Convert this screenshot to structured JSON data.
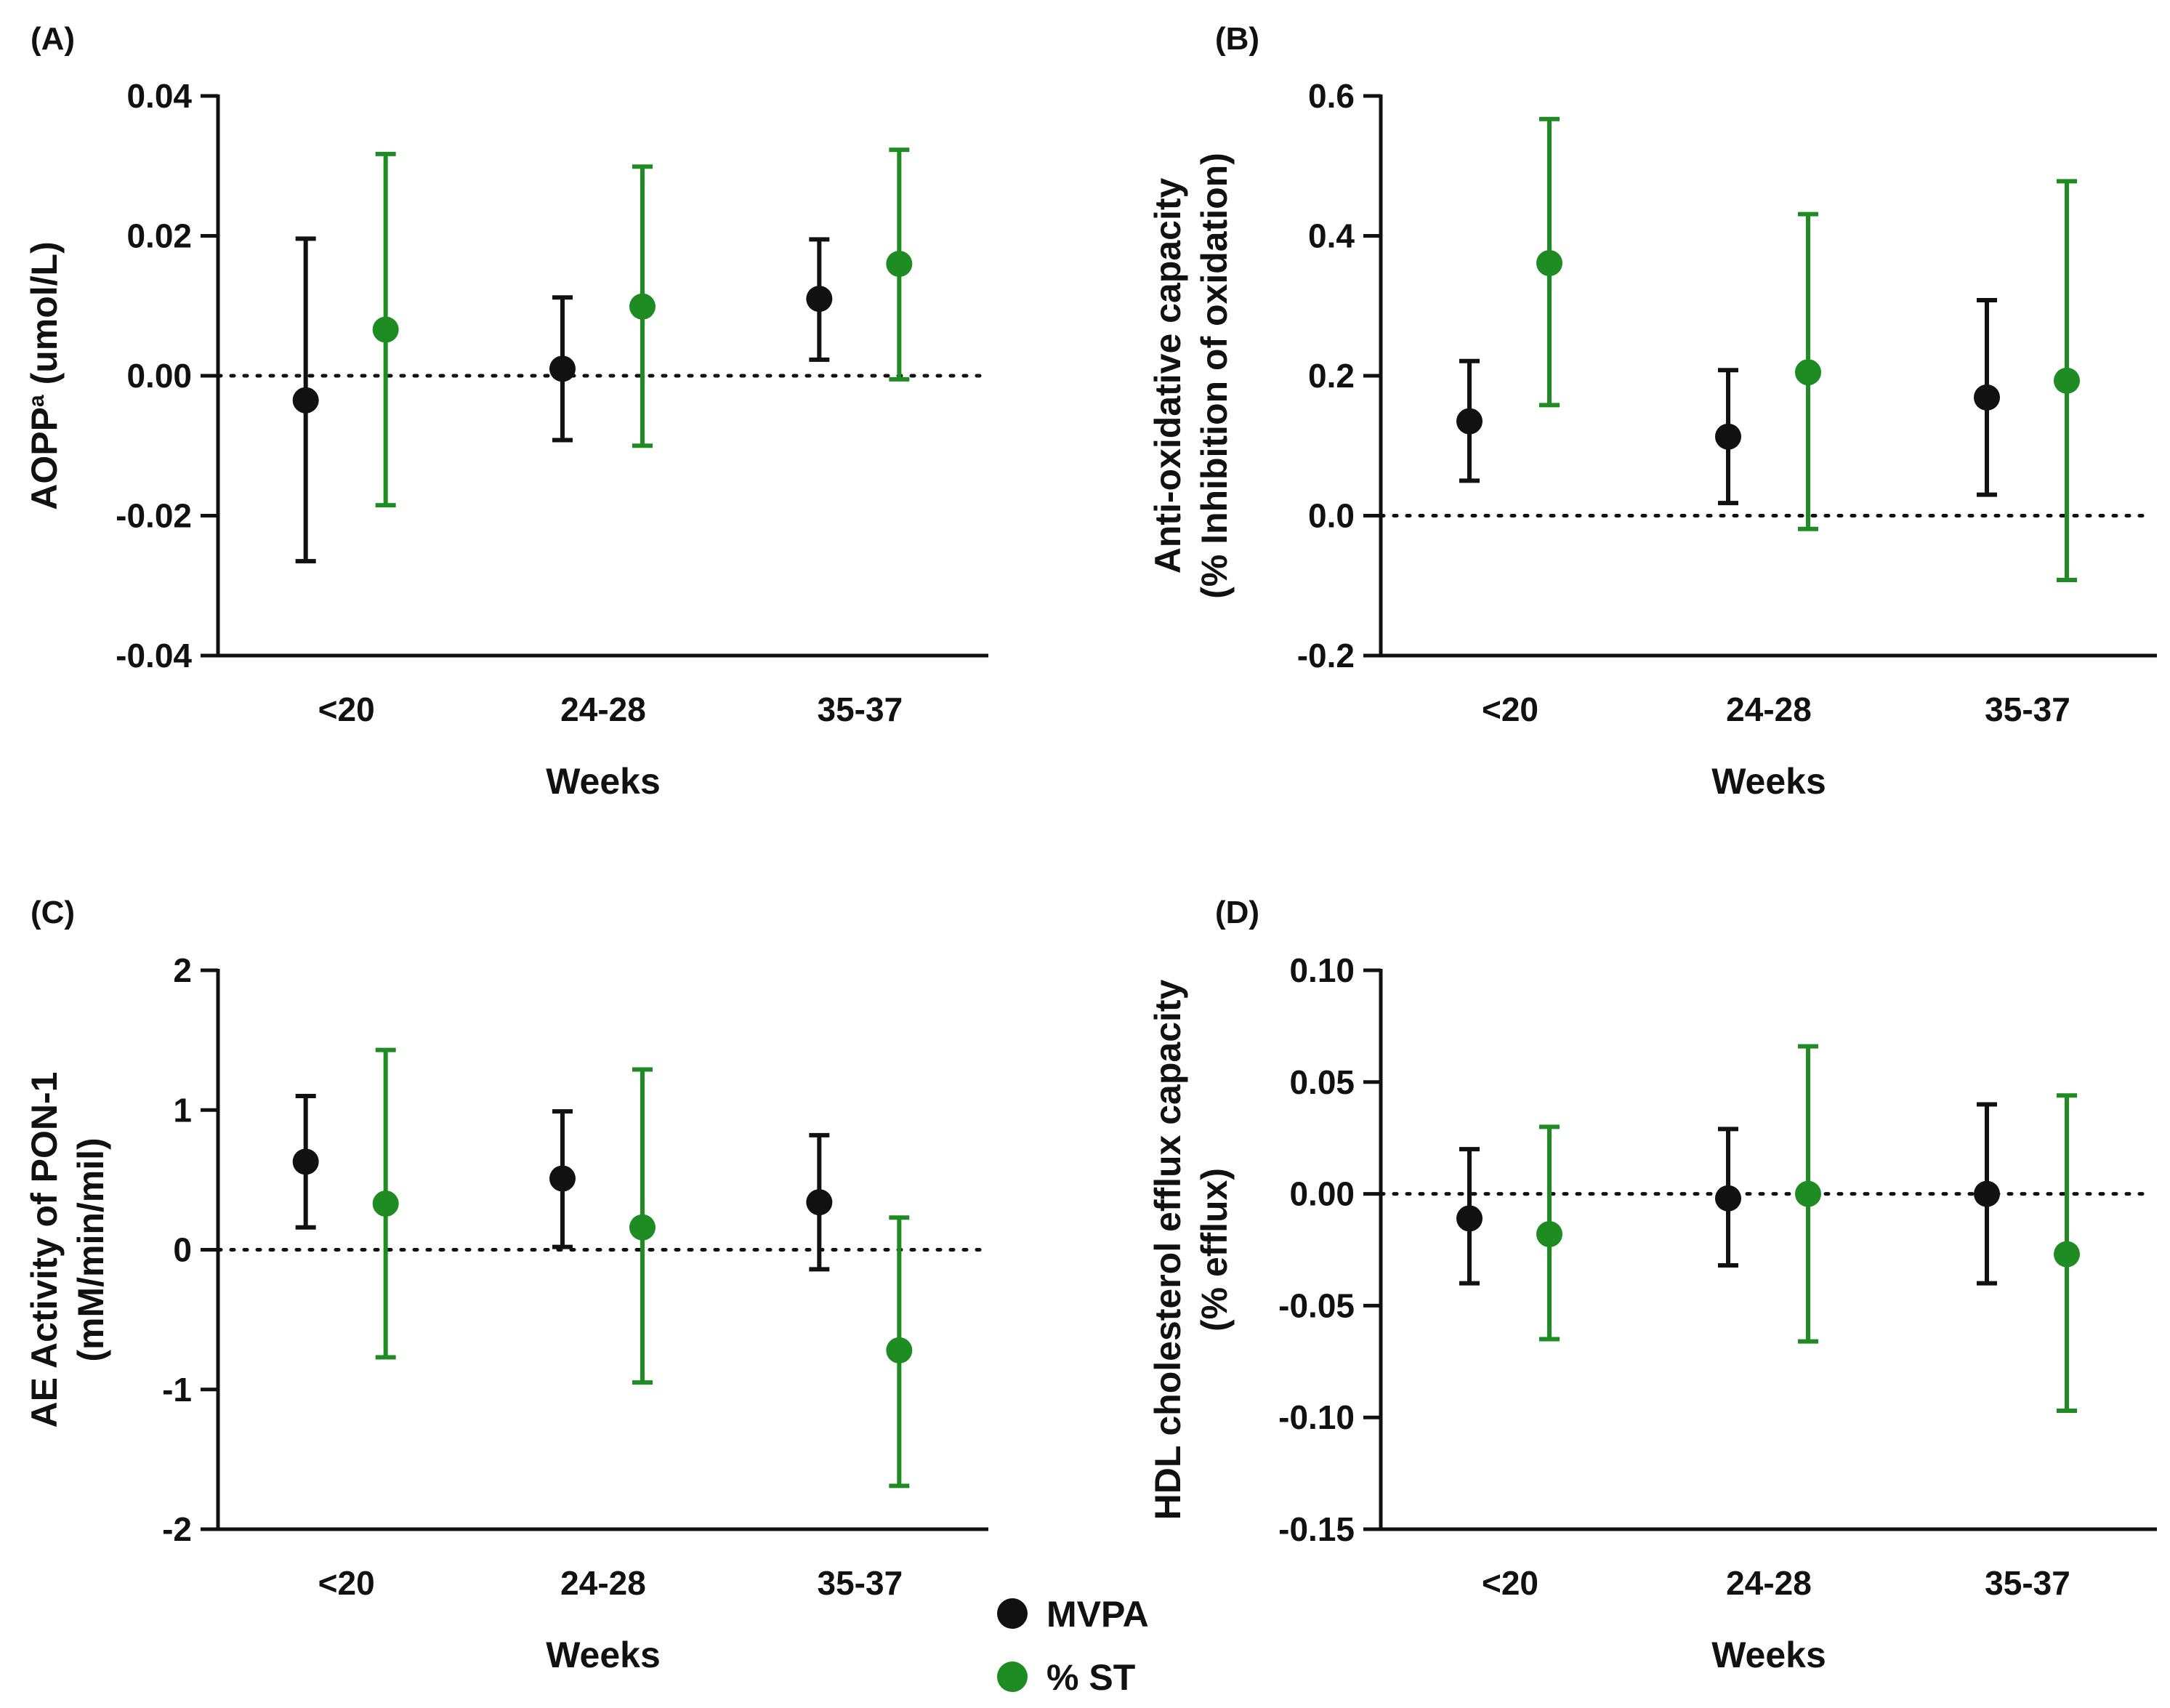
{
  "colors": {
    "mvpa": "#111111",
    "st": "#1e8c22",
    "axis": "#111111"
  },
  "legend": {
    "items": [
      {
        "key": "mvpa",
        "label": "MVPA"
      },
      {
        "key": "st",
        "label": "% ST"
      }
    ]
  },
  "chart_data": [
    {
      "id": "A",
      "panel_label": "(A)",
      "type": "scatter",
      "ylabel_main": "AOPP",
      "ylabel_sup": "a",
      "ylabel_rest": " (umol/L)",
      "ylabel_line2": "",
      "xlabel": "Weeks",
      "categories": [
        "<20",
        "24-28",
        "35-37"
      ],
      "ylim": [
        -0.04,
        0.04
      ],
      "yticks": [
        -0.04,
        -0.02,
        0.0,
        0.02,
        0.04
      ],
      "ytick_labels": [
        "-0.04",
        "-0.02",
        "0.00",
        "0.02",
        "0.04"
      ],
      "reference_line": 0,
      "series": [
        {
          "name": "MVPA",
          "key": "mvpa",
          "values": [
            -0.0035,
            0.001,
            0.011
          ],
          "lower": [
            -0.0265,
            -0.0092,
            0.0023
          ],
          "upper": [
            0.0196,
            0.0112,
            0.0195
          ]
        },
        {
          "name": "% ST",
          "key": "st",
          "values": [
            0.0066,
            0.0099,
            0.016
          ],
          "lower": [
            -0.0185,
            -0.01,
            -0.0005
          ],
          "upper": [
            0.0317,
            0.0299,
            0.0323
          ]
        }
      ]
    },
    {
      "id": "B",
      "panel_label": "(B)",
      "type": "scatter",
      "ylabel_main": "Anti-oxidative capacity",
      "ylabel_sup": "",
      "ylabel_rest": "",
      "ylabel_line2": "(% Inhibition of oxidation)",
      "xlabel": "Weeks",
      "categories": [
        "<20",
        "24-28",
        "35-37"
      ],
      "ylim": [
        -0.2,
        0.6
      ],
      "yticks": [
        -0.2,
        0.0,
        0.2,
        0.4,
        0.6
      ],
      "ytick_labels": [
        "-0.2",
        "0.0",
        "0.2",
        "0.4",
        "0.6"
      ],
      "reference_line": 0,
      "series": [
        {
          "name": "MVPA",
          "key": "mvpa",
          "values": [
            0.135,
            0.113,
            0.169
          ],
          "lower": [
            0.05,
            0.018,
            0.03
          ],
          "upper": [
            0.221,
            0.208,
            0.308
          ]
        },
        {
          "name": "% ST",
          "key": "st",
          "values": [
            0.361,
            0.205,
            0.193
          ],
          "lower": [
            0.158,
            -0.019,
            -0.092
          ],
          "upper": [
            0.567,
            0.431,
            0.478
          ]
        }
      ]
    },
    {
      "id": "C",
      "panel_label": "(C)",
      "type": "scatter",
      "ylabel_main": "AE Activity of PON-1",
      "ylabel_sup": "",
      "ylabel_rest": "",
      "ylabel_line2": "(mM/min/mil)",
      "xlabel": "Weeks",
      "categories": [
        "<20",
        "24-28",
        "35-37"
      ],
      "ylim": [
        -2,
        2
      ],
      "yticks": [
        -2,
        -1,
        0,
        1,
        2
      ],
      "ytick_labels": [
        "-2",
        "-1",
        "0",
        "1",
        "2"
      ],
      "reference_line": 0,
      "series": [
        {
          "name": "MVPA",
          "key": "mvpa",
          "values": [
            0.63,
            0.51,
            0.34
          ],
          "lower": [
            0.16,
            0.02,
            -0.14
          ],
          "upper": [
            1.1,
            0.99,
            0.82
          ]
        },
        {
          "name": "% ST",
          "key": "st",
          "values": [
            0.33,
            0.16,
            -0.72
          ],
          "lower": [
            -0.77,
            -0.95,
            -1.69
          ],
          "upper": [
            1.43,
            1.29,
            0.23
          ]
        }
      ]
    },
    {
      "id": "D",
      "panel_label": "(D)",
      "type": "scatter",
      "ylabel_main": "HDL cholesterol efflux capacity",
      "ylabel_sup": "",
      "ylabel_rest": "",
      "ylabel_line2": "(% efflux)",
      "xlabel": "Weeks",
      "categories": [
        "<20",
        "24-28",
        "35-37"
      ],
      "ylim": [
        -0.15,
        0.1
      ],
      "yticks": [
        -0.15,
        -0.1,
        -0.05,
        0.0,
        0.05,
        0.1
      ],
      "ytick_labels": [
        "-0.15",
        "-0.10",
        "-0.05",
        "0.00",
        "0.05",
        "0.10"
      ],
      "reference_line": 0,
      "series": [
        {
          "name": "MVPA",
          "key": "mvpa",
          "values": [
            -0.011,
            -0.002,
            0.0
          ],
          "lower": [
            -0.04,
            -0.032,
            -0.04
          ],
          "upper": [
            0.02,
            0.029,
            0.04
          ]
        },
        {
          "name": "% ST",
          "key": "st",
          "values": [
            -0.018,
            0.0,
            -0.027
          ],
          "lower": [
            -0.065,
            -0.066,
            -0.097
          ],
          "upper": [
            0.03,
            0.066,
            0.044
          ]
        }
      ]
    }
  ]
}
